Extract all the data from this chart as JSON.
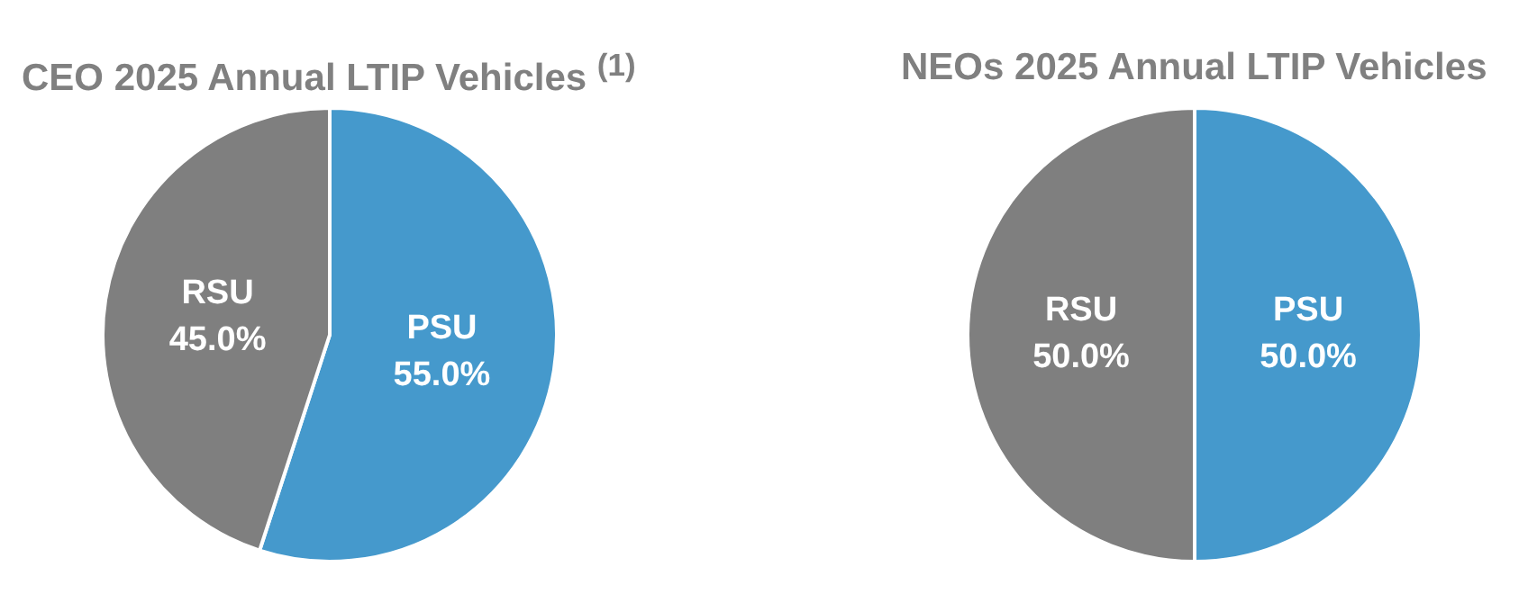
{
  "chart_data": [
    {
      "type": "pie",
      "title": "CEO 2025 Annual LTIP Vehicles $^{(1)}$",
      "categories": [
        "PSU",
        "RSU"
      ],
      "values": [
        55,
        45
      ],
      "colors": [
        "#4599cc",
        "#7f7f7f"
      ],
      "value_labels": [
        "55.0%",
        "45.0%"
      ],
      "legend": false
    },
    {
      "type": "pie",
      "title": "NEOs 2025 Annual LTIP Vehicles",
      "categories": [
        "PSU",
        "RSU"
      ],
      "values": [
        50,
        50
      ],
      "colors": [
        "#4599cc",
        "#7f7f7f"
      ],
      "value_labels": [
        "50.0%",
        "50.0%"
      ],
      "legend": false
    }
  ]
}
